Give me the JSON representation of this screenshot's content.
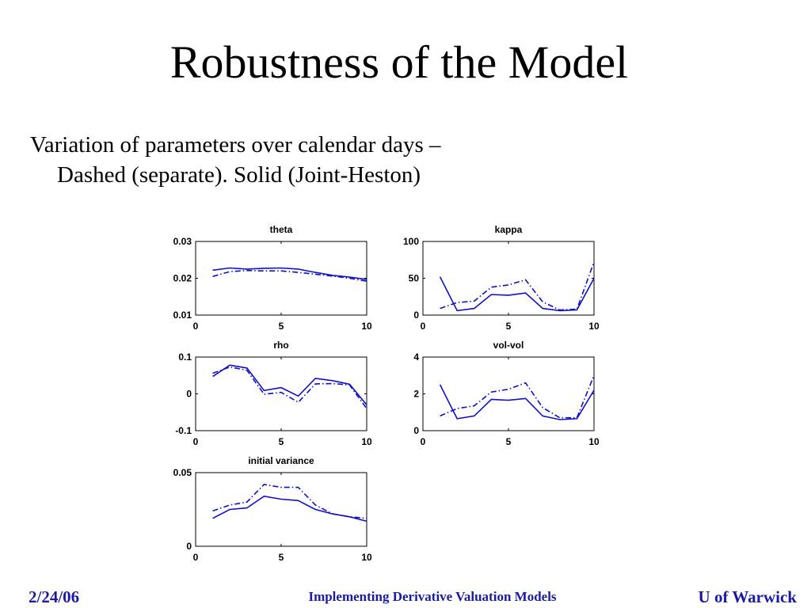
{
  "slide": {
    "title": "Robustness of the Model",
    "body_line1": "Variation of parameters over calendar days –",
    "body_line2": "Dashed (separate). Solid (Joint-Heston)"
  },
  "footer": {
    "date": "2/24/06",
    "center": "Implementing Derivative Valuation Models",
    "right": "U of Warwick",
    "color": "#1a1aa6"
  },
  "chart_data": [
    {
      "type": "line",
      "title": "theta",
      "x": [
        1,
        2,
        3,
        4,
        5,
        6,
        7,
        8,
        9,
        10
      ],
      "xlim": [
        0,
        10
      ],
      "xticks": [
        0,
        5,
        10
      ],
      "xtick_labels": [
        "0",
        "5",
        "10"
      ],
      "ylim": [
        0.01,
        0.03
      ],
      "yticks": [
        0.01,
        0.02,
        0.03
      ],
      "ytick_labels": [
        "0.01",
        "0.02",
        "0.03"
      ],
      "series": [
        {
          "style": "solid",
          "values": [
            0.0222,
            0.0228,
            0.0225,
            0.0227,
            0.0228,
            0.0225,
            0.0216,
            0.0208,
            0.0203,
            0.0197
          ]
        },
        {
          "style": "dashdot",
          "values": [
            0.0205,
            0.0218,
            0.0221,
            0.022,
            0.022,
            0.0216,
            0.0211,
            0.0206,
            0.02,
            0.0192
          ]
        }
      ]
    },
    {
      "type": "line",
      "title": "kappa",
      "x": [
        1,
        2,
        3,
        4,
        5,
        6,
        7,
        8,
        9,
        10
      ],
      "xlim": [
        0,
        10
      ],
      "xticks": [
        0,
        5,
        10
      ],
      "xtick_labels": [
        "0",
        "5",
        "10"
      ],
      "ylim": [
        0,
        100
      ],
      "yticks": [
        0,
        50,
        100
      ],
      "ytick_labels": [
        "0",
        "50",
        "100"
      ],
      "series": [
        {
          "style": "solid",
          "values": [
            52,
            6,
            9,
            28,
            27,
            30,
            9,
            6,
            7,
            50
          ]
        },
        {
          "style": "dashdot",
          "values": [
            9,
            17,
            19,
            38,
            41,
            48,
            18,
            7,
            8,
            72
          ]
        }
      ]
    },
    {
      "type": "line",
      "title": "rho",
      "x": [
        1,
        2,
        3,
        4,
        5,
        6,
        7,
        8,
        9,
        10
      ],
      "xlim": [
        0,
        10
      ],
      "xticks": [
        0,
        5,
        10
      ],
      "xtick_labels": [
        "0",
        "5",
        "10"
      ],
      "ylim": [
        -0.1,
        0.1
      ],
      "yticks": [
        -0.1,
        0,
        0.1
      ],
      "ytick_labels": [
        "-0.1",
        "0",
        "0.1"
      ],
      "series": [
        {
          "style": "solid",
          "values": [
            0.047,
            0.078,
            0.07,
            0.009,
            0.017,
            -0.006,
            0.042,
            0.036,
            0.026,
            -0.03
          ]
        },
        {
          "style": "dashdot",
          "values": [
            0.056,
            0.073,
            0.064,
            -0.001,
            0.004,
            -0.023,
            0.027,
            0.028,
            0.024,
            -0.04
          ]
        }
      ]
    },
    {
      "type": "line",
      "title": "vol-vol",
      "x": [
        1,
        2,
        3,
        4,
        5,
        6,
        7,
        8,
        9,
        10
      ],
      "xlim": [
        0,
        10
      ],
      "xticks": [
        0,
        5,
        10
      ],
      "xtick_labels": [
        "0",
        "5",
        "10"
      ],
      "ylim": [
        0,
        4
      ],
      "yticks": [
        0,
        2,
        4
      ],
      "ytick_labels": [
        "0",
        "2",
        "4"
      ],
      "series": [
        {
          "style": "solid",
          "values": [
            2.5,
            0.65,
            0.8,
            1.7,
            1.65,
            1.75,
            0.8,
            0.6,
            0.65,
            2.2
          ]
        },
        {
          "style": "dashdot",
          "values": [
            0.8,
            1.2,
            1.35,
            2.1,
            2.25,
            2.6,
            1.25,
            0.7,
            0.7,
            3.0
          ]
        }
      ]
    },
    {
      "type": "line",
      "title": "initial variance",
      "x": [
        1,
        2,
        3,
        4,
        5,
        6,
        7,
        8,
        9,
        10
      ],
      "xlim": [
        0,
        10
      ],
      "xticks": [
        0,
        5,
        10
      ],
      "xtick_labels": [
        "0",
        "5",
        "10"
      ],
      "ylim": [
        0,
        0.05
      ],
      "yticks": [
        0,
        0.05
      ],
      "ytick_labels": [
        "0",
        "0.05"
      ],
      "series": [
        {
          "style": "solid",
          "values": [
            0.019,
            0.025,
            0.026,
            0.034,
            0.032,
            0.031,
            0.025,
            0.022,
            0.02,
            0.017
          ]
        },
        {
          "style": "dashdot",
          "values": [
            0.024,
            0.028,
            0.03,
            0.042,
            0.04,
            0.04,
            0.028,
            0.022,
            0.02,
            0.019
          ]
        }
      ]
    }
  ],
  "line_color": "#1010c8"
}
